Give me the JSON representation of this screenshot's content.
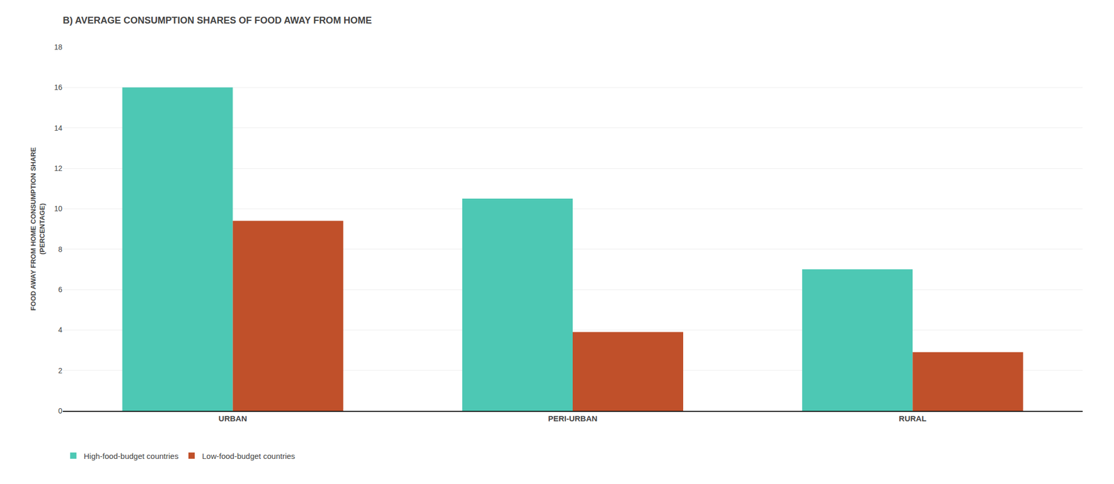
{
  "chart_data": {
    "type": "bar",
    "title": "B) AVERAGE CONSUMPTION SHARES OF FOOD AWAY FROM HOME",
    "ylabel": "FOOD AWAY FROM HOME CONSUMPTION SHARE\n(PERCENTAGE)",
    "categories": [
      "URBAN",
      "PERI-URBAN",
      "RURAL"
    ],
    "series": [
      {
        "name": "High-food-budget countries",
        "color": "#4DC8B4",
        "values": [
          16.0,
          10.5,
          7.0
        ]
      },
      {
        "name": "Low-food-budget countries",
        "color": "#C0502A",
        "values": [
          9.4,
          3.9,
          2.9
        ]
      }
    ],
    "ylim": [
      0,
      18
    ],
    "yticks": [
      0,
      2,
      4,
      6,
      8,
      10,
      12,
      14,
      16,
      18
    ],
    "grid": true,
    "legend": "lower left"
  }
}
